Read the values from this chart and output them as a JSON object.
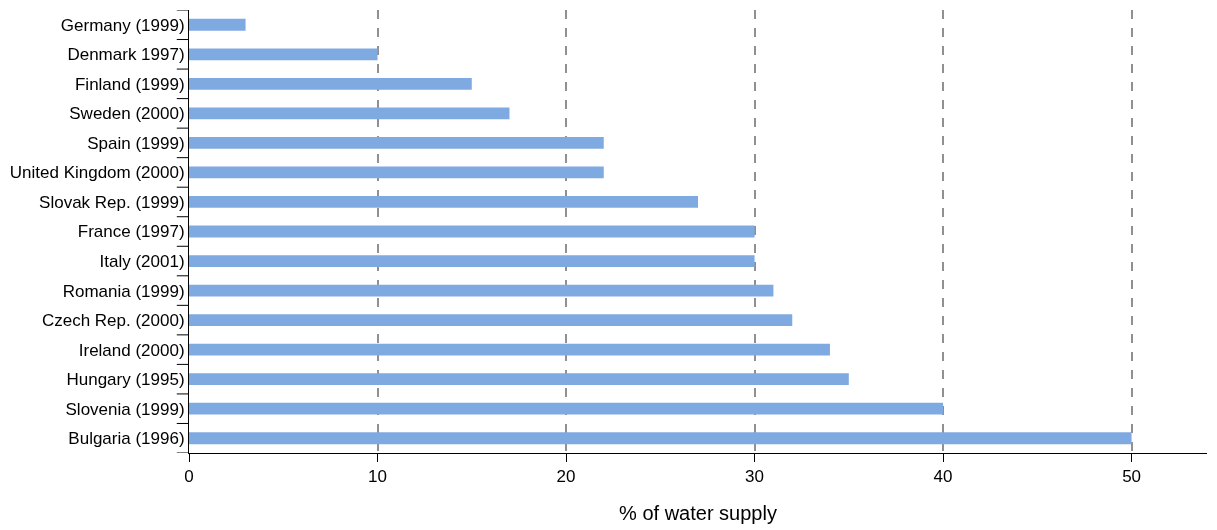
{
  "chart_data": {
    "type": "bar",
    "orientation": "horizontal",
    "xlabel": "% of water supply",
    "categories": [
      "Germany (1999)",
      "Denmark 1997)",
      "Finland (1999)",
      "Sweden (2000)",
      "Spain (1999)",
      "United Kingdom (2000)",
      "Slovak Rep. (1999)",
      "France (1997)",
      "Italy (2001)",
      "Romania (1999)",
      "Czech Rep. (2000)",
      "Ireland (2000)",
      "Hungary (1995)",
      "Slovenia (1999)",
      "Bulgaria (1996)"
    ],
    "values": [
      3,
      10,
      15,
      17,
      22,
      22,
      27,
      30,
      30,
      31,
      32,
      34,
      35,
      40,
      50
    ],
    "color": "#7faae1",
    "xlim": [
      0,
      54
    ],
    "xticks": [
      0,
      10,
      20,
      30,
      40,
      50
    ],
    "grid": "x",
    "legend": false
  }
}
